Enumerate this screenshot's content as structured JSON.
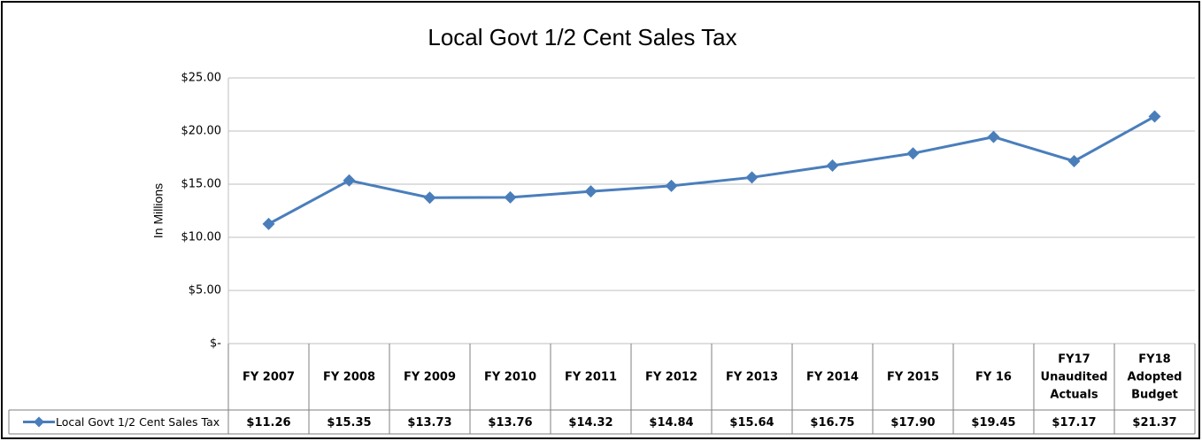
{
  "chart_data": {
    "type": "line",
    "title": "Local Govt 1/2 Cent Sales Tax",
    "y_label": "In Millions",
    "categories": [
      "FY 2007",
      "FY 2008",
      "FY 2009",
      "FY 2010",
      "FY 2011",
      "FY 2012",
      "FY 2013",
      "FY 2014",
      "FY 2015",
      "FY 16",
      "FY17\nUnaudited\nActuals",
      "FY18\nAdopted\nBudget"
    ],
    "series": [
      {
        "name": "Local Govt 1/2 Cent Sales Tax",
        "color": "#4a7ebb",
        "values": [
          11.26,
          15.35,
          13.73,
          13.76,
          14.32,
          14.84,
          15.64,
          16.75,
          17.9,
          19.45,
          17.17,
          21.37
        ],
        "value_labels": [
          "$11.26",
          "$15.35",
          "$13.73",
          "$13.76",
          "$14.32",
          "$14.84",
          "$15.64",
          "$16.75",
          "$17.90",
          "$19.45",
          "$17.17",
          "$21.37"
        ]
      }
    ],
    "ylim": [
      0,
      25
    ],
    "yticks": [
      {
        "value": 0,
        "label": "$-"
      },
      {
        "value": 5,
        "label": "$5.00"
      },
      {
        "value": 10,
        "label": "$10.00"
      },
      {
        "value": 15,
        "label": "$15.00"
      },
      {
        "value": 20,
        "label": "$20.00"
      },
      {
        "value": 25,
        "label": "$25.00"
      }
    ],
    "grid": true,
    "data_table": true
  }
}
